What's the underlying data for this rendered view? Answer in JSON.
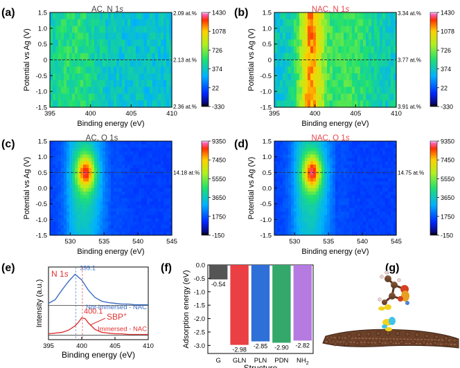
{
  "panels": {
    "a": {
      "label": "(a)",
      "title": "AC, N 1s",
      "title_prefix": "AC, N 1",
      "title_italic": "s",
      "title_color": "#444444"
    },
    "b": {
      "label": "(b)",
      "title": "NAC, N 1s",
      "title_prefix": "NAC, N 1",
      "title_italic": "s",
      "title_color": "#e8454a"
    },
    "c": {
      "label": "(c)",
      "title": "AC, O 1s",
      "title_prefix": "AC, O 1s",
      "title_italic": "",
      "title_color": "#444444"
    },
    "d": {
      "label": "(d)",
      "title": "NAC, O 1s",
      "title_prefix": "NAC, O 1",
      "title_italic": "s",
      "title_color": "#e8454a"
    },
    "e": {
      "label": "(e)"
    },
    "f": {
      "label": "(f)"
    },
    "g": {
      "label": "(g)"
    }
  },
  "chart_data": [
    {
      "id": "a",
      "type": "heatmap",
      "title": "AC, N 1s",
      "xlabel": "Binding energy (eV)",
      "ylabel": "Potential vs Ag (V)",
      "xlim": [
        395,
        410
      ],
      "ylim": [
        -1.5,
        1.5
      ],
      "xticks": [
        "395",
        "400",
        "405",
        "410"
      ],
      "yticks": [
        "-1.5",
        "-1.0",
        "-0.5",
        "0",
        "0.5",
        "1.0",
        "1.5"
      ],
      "right_annotations": [
        "2.09 at.%",
        "2.13 at.%",
        "2.36 at.%"
      ],
      "colorbar_ticks": [
        "1430",
        "1078",
        "726",
        "374",
        "22",
        "-330"
      ],
      "colorbar_range": [
        -330,
        1430
      ],
      "peak_center_ev": 398,
      "peak_level": 0.5,
      "base_level": 0.38,
      "dashed_line_at_potential": 0.0
    },
    {
      "id": "b",
      "type": "heatmap",
      "title": "NAC, N 1s",
      "xlabel": "Binding energy (eV)",
      "ylabel": "Potential vs Ag (V)",
      "xlim": [
        395,
        410
      ],
      "ylim": [
        -1.5,
        1.5
      ],
      "xticks": [
        "395",
        "400",
        "405",
        "410"
      ],
      "yticks": [
        "-1.5",
        "-1.0",
        "-0.5",
        "0",
        "0.5",
        "1.0",
        "1.5"
      ],
      "right_annotations": [
        "3.34 at.%",
        "3.77 at.%",
        "3.91 at.%"
      ],
      "colorbar_ticks": [
        "1430",
        "1078",
        "726",
        "374",
        "22",
        "-330"
      ],
      "colorbar_range": [
        -330,
        1430
      ],
      "peak_center_ev": 399.5,
      "peak_level": 0.82,
      "base_level": 0.4,
      "dashed_line_at_potential": 0.0
    },
    {
      "id": "c",
      "type": "heatmap",
      "title": "AC, O 1s",
      "xlabel": "Binding energy (eV)",
      "ylabel": "Potential vs Ag (V)",
      "xlim": [
        527,
        545
      ],
      "ylim": [
        -1.5,
        1.5
      ],
      "xticks": [
        "530",
        "535",
        "540",
        "545"
      ],
      "yticks": [
        "-1.5",
        "-1.0",
        "-0.5",
        "0.0",
        "0.5",
        "1.0",
        "1.5"
      ],
      "right_annotations": [
        "14.18 at.%"
      ],
      "colorbar_ticks": [
        "9350",
        "7450",
        "5550",
        "3650",
        "1750",
        "-150"
      ],
      "colorbar_range": [
        -150,
        9350
      ],
      "peak_center_ev": 532.3,
      "peak_potential": 0.5,
      "peak_level": 0.95,
      "dashed_line_at_potential": 0.5
    },
    {
      "id": "d",
      "type": "heatmap",
      "title": "NAC, O 1s",
      "xlabel": "Binding energy (eV)",
      "ylabel": "Potential vs Ag (V)",
      "xlim": [
        527,
        545
      ],
      "ylim": [
        -1.5,
        1.5
      ],
      "xticks": [
        "530",
        "535",
        "540",
        "545"
      ],
      "yticks": [
        "-1.5",
        "-1.0",
        "-0.5",
        "0.0",
        "0.5",
        "1.0",
        "1.5"
      ],
      "right_annotations": [
        "14.75 at.%"
      ],
      "colorbar_ticks": [
        "9350",
        "7450",
        "5550",
        "3650",
        "1750",
        "-150"
      ],
      "colorbar_range": [
        -150,
        9350
      ],
      "peak_center_ev": 532.6,
      "peak_potential": 0.5,
      "peak_level": 0.97,
      "dashed_line_at_potential": 0.5
    },
    {
      "id": "e",
      "type": "line",
      "title": "N 1s",
      "title_prefix": "N 1",
      "title_italic": "s",
      "xlabel": "Binding energy (eV)",
      "ylabel": "Intensity (a.u.)",
      "xlim": [
        395,
        410
      ],
      "xticks": [
        "395",
        "400",
        "405",
        "410"
      ],
      "series": [
        {
          "name": "Not-immersed - NAC",
          "color": "#3c6fc4",
          "peak_label": "399.1",
          "peak_x": 399.1,
          "x": [
            395,
            396,
            397,
            398,
            399,
            400,
            401,
            402,
            403,
            404,
            405,
            406,
            407,
            408,
            409,
            410
          ],
          "y": [
            0.5,
            0.55,
            0.68,
            0.8,
            0.9,
            0.82,
            0.68,
            0.58,
            0.53,
            0.51,
            0.5,
            0.49,
            0.49,
            0.48,
            0.48,
            0.48
          ]
        },
        {
          "name": "Immersed - NAC",
          "color": "#e03030",
          "peak_label": "400.1",
          "peak_x": 400.1,
          "x": [
            395,
            396,
            397,
            398,
            399,
            399.5,
            400,
            400.5,
            401,
            402,
            403,
            404,
            405,
            406,
            407,
            408,
            409,
            410
          ],
          "y": [
            0.08,
            0.09,
            0.1,
            0.13,
            0.19,
            0.24,
            0.3,
            0.29,
            0.23,
            0.14,
            0.1,
            0.09,
            0.08,
            0.08,
            0.07,
            0.07,
            0.07,
            0.07
          ]
        }
      ],
      "annotations": [
        {
          "text": "SBP",
          "superscript": "+",
          "color": "#e03030"
        }
      ]
    },
    {
      "id": "f",
      "type": "bar",
      "xlabel": "Structure",
      "ylabel": "Adsorption energy (eV)",
      "categories": [
        "G",
        "GLN",
        "PLN",
        "PDN",
        "NH2"
      ],
      "category_labels": [
        {
          "main": "G",
          "sub": ""
        },
        {
          "main": "GLN",
          "sub": ""
        },
        {
          "main": "PLN",
          "sub": ""
        },
        {
          "main": "PDN",
          "sub": ""
        },
        {
          "main": "NH",
          "sub": "2"
        }
      ],
      "values": [
        -0.54,
        -2.98,
        -2.85,
        -2.9,
        -2.82
      ],
      "value_labels": [
        "-0.54",
        "-2.98",
        "-2.85",
        "-2.90",
        "-2.82"
      ],
      "colors": [
        "#555555",
        "#ea3f43",
        "#2f6fd8",
        "#34a86a",
        "#b57be0"
      ],
      "ylim": [
        -3.3,
        0
      ],
      "yticks": [
        "0.0",
        "-0.5",
        "-1.0",
        "-1.5",
        "-2.0",
        "-2.5",
        "-3.0"
      ]
    }
  ]
}
